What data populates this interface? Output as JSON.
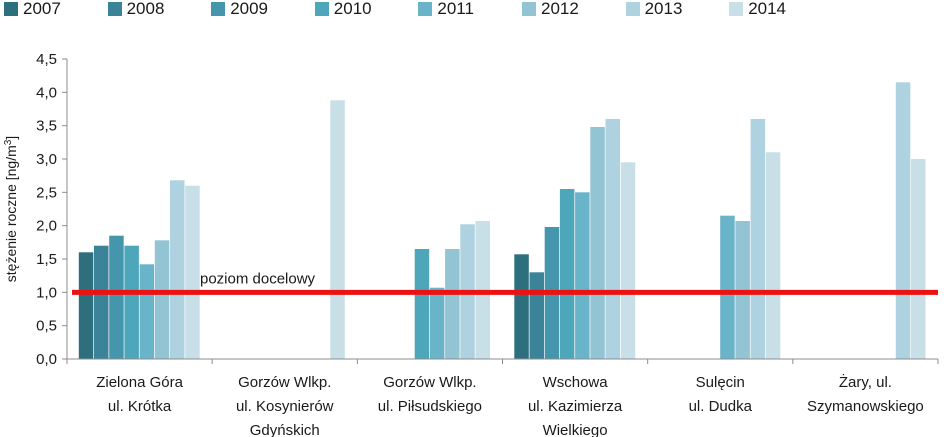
{
  "chart_data": {
    "type": "bar",
    "ylabel": "stężenie roczne [ng/m³]",
    "ylabel_main": "stężenie roczne [ng/m",
    "ylabel_sup": "3",
    "ylabel_tail": "]",
    "ylim": [
      0,
      4.5
    ],
    "yticks": [
      "0,0",
      "0,5",
      "1,0",
      "1,5",
      "2,0",
      "2,5",
      "3,0",
      "3,5",
      "4,0",
      "4,5"
    ],
    "grid": false,
    "legend_position": "top-left",
    "categories": [
      [
        "Zielona Góra",
        "ul. Krótka"
      ],
      [
        "Gorzów Wlkp.",
        "ul. Kosynierów",
        "Gdyńskich"
      ],
      [
        "Gorzów Wlkp.",
        "ul. Piłsudskiego"
      ],
      [
        "Wschowa",
        "ul. Kazimierza",
        "Wielkiego"
      ],
      [
        "Sulęcin",
        "ul. Dudka"
      ],
      [
        "Żary, ul.",
        "Szymanowskiego"
      ]
    ],
    "series": [
      {
        "name": "2007",
        "color": "#2e6f7e",
        "values": [
          1.6,
          null,
          null,
          1.57,
          null,
          null
        ]
      },
      {
        "name": "2008",
        "color": "#3a8399",
        "values": [
          1.7,
          null,
          null,
          1.3,
          null,
          null
        ]
      },
      {
        "name": "2009",
        "color": "#4596ac",
        "values": [
          1.85,
          null,
          null,
          1.98,
          null,
          null
        ]
      },
      {
        "name": "2010",
        "color": "#4ea6bb",
        "values": [
          1.7,
          null,
          1.65,
          2.55,
          null,
          null
        ]
      },
      {
        "name": "2011",
        "color": "#6ab4c9",
        "values": [
          1.42,
          null,
          1.07,
          2.5,
          2.15,
          null
        ]
      },
      {
        "name": "2012",
        "color": "#93c4d4",
        "values": [
          1.78,
          null,
          1.65,
          3.48,
          2.07,
          null
        ]
      },
      {
        "name": "2013",
        "color": "#aed2df",
        "values": [
          2.68,
          null,
          2.02,
          3.6,
          3.6,
          4.15
        ]
      },
      {
        "name": "2014",
        "color": "#c8dfe8",
        "values": [
          2.6,
          3.88,
          2.07,
          2.95,
          3.1,
          3.0
        ]
      }
    ],
    "target_line": {
      "label": "poziom docelowy",
      "value": 1.0,
      "color": "#ee1111"
    }
  }
}
